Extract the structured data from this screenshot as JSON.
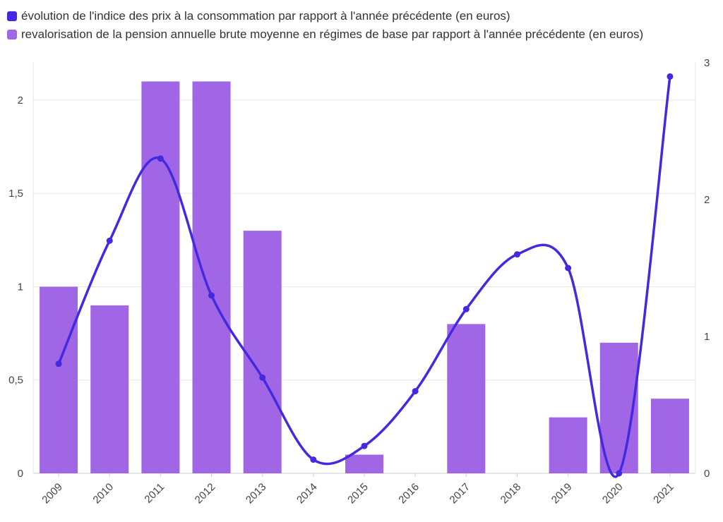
{
  "chart_data": {
    "type": "bar+line",
    "categories": [
      "2009",
      "2010",
      "2011",
      "2012",
      "2013",
      "2014",
      "2015",
      "2016",
      "2017",
      "2018",
      "2019",
      "2020",
      "2021"
    ],
    "series": [
      {
        "name": "évolution de l'indice des prix à la consommation par rapport à l'année précédente (en euros)",
        "type": "line",
        "axis": "right",
        "color": "#4329e0",
        "values": [
          0.8,
          1.7,
          2.3,
          1.3,
          0.7,
          0.1,
          0.2,
          0.6,
          1.2,
          1.6,
          1.5,
          0,
          2.9
        ]
      },
      {
        "name": "revalorisation de la pension annuelle brute moyenne en régimes de base par rapport à l'année précédente (en euros)",
        "type": "bar",
        "axis": "left",
        "color": "#a066e6",
        "values": [
          1.0,
          0.9,
          2.1,
          2.1,
          1.3,
          0,
          0.1,
          0,
          0.8,
          0,
          0.3,
          0.7,
          0.4
        ]
      }
    ],
    "left_axis": {
      "ylim": [
        0,
        2.2
      ],
      "ticks": [
        0,
        0.5,
        1,
        1.5,
        2
      ],
      "tick_labels": [
        "0",
        "0,5",
        "1",
        "1,5",
        "2"
      ]
    },
    "right_axis": {
      "ylim": [
        0,
        3
      ],
      "ticks": [
        0,
        1,
        2,
        3
      ],
      "tick_labels": [
        "0",
        "1",
        "2",
        "3"
      ]
    },
    "grid": true,
    "legend": "top-left"
  }
}
